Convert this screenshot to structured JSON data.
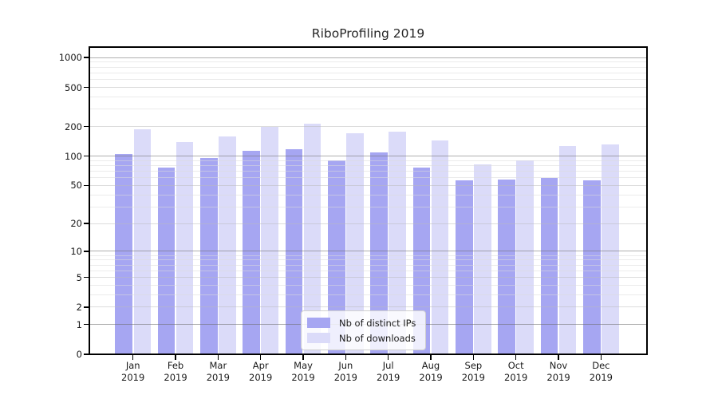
{
  "title": "RiboProfiling 2019",
  "colors": {
    "ips_bar": "#a6a6f2",
    "downloads_bar": "#dbdbf9",
    "grid_major": "#b0b0b0",
    "grid_mid": "#dcdcdc",
    "grid_minor": "#ebebeb"
  },
  "legend": {
    "items": [
      {
        "label": "Nb of distinct IPs",
        "color_key": "ips_bar"
      },
      {
        "label": "Nb of downloads",
        "color_key": "downloads_bar"
      }
    ],
    "position": "lower center"
  },
  "y_axis": {
    "scale": "symlog ln(1+v)",
    "ticks": [
      {
        "value": 1000,
        "label": "1000"
      },
      {
        "value": 500,
        "label": "500"
      },
      {
        "value": 200,
        "label": "200"
      },
      {
        "value": 100,
        "label": "100"
      },
      {
        "value": 50,
        "label": "50"
      },
      {
        "value": 20,
        "label": "20"
      },
      {
        "value": 10,
        "label": "10"
      },
      {
        "value": 5,
        "label": "5"
      },
      {
        "value": 2,
        "label": "2"
      },
      {
        "value": 1,
        "label": "1"
      },
      {
        "value": 0,
        "label": "0"
      }
    ],
    "gridlines": {
      "major": [
        1,
        10,
        100,
        1000
      ],
      "mid": [
        2,
        5,
        20,
        50,
        200,
        500
      ],
      "minor": [
        3,
        4,
        6,
        7,
        8,
        9,
        30,
        40,
        60,
        70,
        80,
        90,
        300,
        400,
        600,
        700,
        800,
        900
      ]
    }
  },
  "x_axis": {
    "months": [
      "Jan",
      "Feb",
      "Mar",
      "Apr",
      "May",
      "Jun",
      "Jul",
      "Aug",
      "Sep",
      "Oct",
      "Nov",
      "Dec"
    ],
    "year": "2019"
  },
  "chart_data": {
    "type": "bar",
    "title": "RiboProfiling 2019",
    "categories": [
      "Jan 2019",
      "Feb 2019",
      "Mar 2019",
      "Apr 2019",
      "May 2019",
      "Jun 2019",
      "Jul 2019",
      "Aug 2019",
      "Sep 2019",
      "Oct 2019",
      "Nov 2019",
      "Dec 2019"
    ],
    "series": [
      {
        "name": "Nb of distinct IPs",
        "color": "#a6a6f2",
        "values": [
          106,
          76,
          96,
          114,
          118,
          91,
          109,
          76,
          57,
          58,
          60,
          57
        ]
      },
      {
        "name": "Nb of downloads",
        "color": "#dbdbf9",
        "values": [
          188,
          139,
          159,
          200,
          215,
          172,
          178,
          145,
          82,
          90,
          128,
          131
        ]
      }
    ],
    "xlabel": "",
    "ylabel": "",
    "y_scale": "symlog",
    "y_ticks": [
      0,
      1,
      2,
      5,
      10,
      20,
      50,
      100,
      200,
      500,
      1000
    ],
    "ylim": [
      0,
      1280
    ],
    "grid": true,
    "legend_position": "lower center"
  }
}
